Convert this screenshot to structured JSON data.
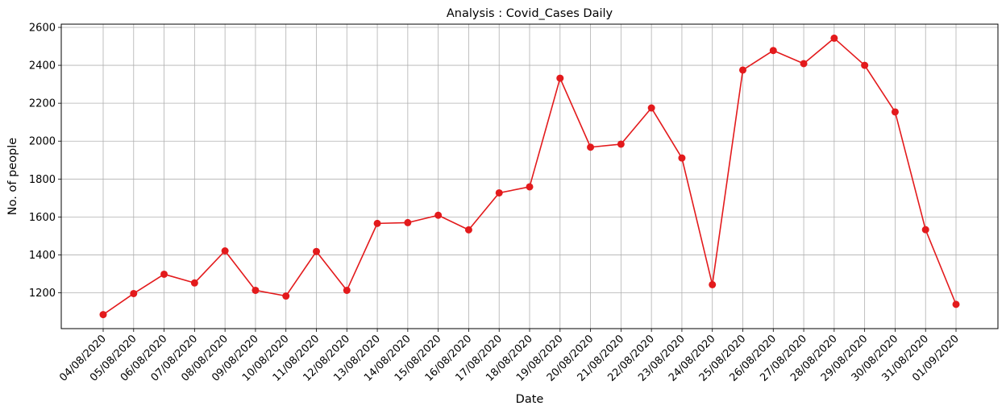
{
  "chart_data": {
    "type": "line",
    "title": "Analysis : Covid_Cases Daily",
    "xlabel": "Date",
    "ylabel": "No. of people",
    "x": [
      "04/08/2020",
      "05/08/2020",
      "06/08/2020",
      "07/08/2020",
      "08/08/2020",
      "09/08/2020",
      "10/08/2020",
      "11/08/2020",
      "12/08/2020",
      "13/08/2020",
      "14/08/2020",
      "15/08/2020",
      "16/08/2020",
      "17/08/2020",
      "18/08/2020",
      "19/08/2020",
      "20/08/2020",
      "21/08/2020",
      "22/08/2020",
      "23/08/2020",
      "24/08/2020",
      "25/08/2020",
      "26/08/2020",
      "27/08/2020",
      "28/08/2020",
      "29/08/2020",
      "30/08/2020",
      "31/08/2020",
      "01/09/2020"
    ],
    "series": [
      {
        "values": [
          1085,
          1196,
          1298,
          1252,
          1421,
          1213,
          1183,
          1418,
          1213,
          1566,
          1570,
          1609,
          1532,
          1727,
          1759,
          2332,
          1968,
          1984,
          2175,
          1911,
          1243,
          2375,
          2478,
          2409,
          2543,
          2400,
          2154,
          1533,
          1139
        ]
      }
    ],
    "yticks": [
      1200,
      1400,
      1600,
      1800,
      2000,
      2200,
      2400,
      2600
    ],
    "ylim": [
      1011,
      2617
    ],
    "grid": true,
    "marker": "circle",
    "line_color": "#e31a1c",
    "grid_color": "#b0b0b0"
  }
}
